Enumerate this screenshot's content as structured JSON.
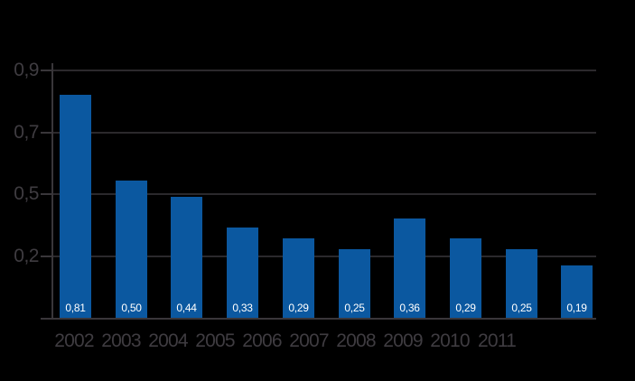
{
  "chart_data": {
    "type": "bar",
    "categories": [
      "2002",
      "2003",
      "2004",
      "2005",
      "2006",
      "2007",
      "2008",
      "2009",
      "2010",
      "2011"
    ],
    "values": [
      0.81,
      0.5,
      0.44,
      0.33,
      0.29,
      0.25,
      0.36,
      0.29,
      0.25,
      0.19
    ],
    "bar_labels": [
      "0,81",
      "0,50",
      "0,44",
      "0,33",
      "0,29",
      "0,25",
      "0,36",
      "0,29",
      "0,25",
      "0,19"
    ],
    "title": "",
    "xlabel": "",
    "ylabel": "",
    "ylim": [
      0,
      0.9
    ],
    "y_tick_labels_top_to_bottom": [
      "0,9",
      "0,7",
      "0,5",
      "0,2"
    ],
    "grid": true,
    "legend_position": "none",
    "decimal_separator": ","
  },
  "colors": {
    "background": "#000000",
    "bar": "#0b58a0",
    "gridline": "#2b292c",
    "axis": "#39363a",
    "axis_text": "#3f3c41",
    "bar_label_text": "#ffffff"
  }
}
